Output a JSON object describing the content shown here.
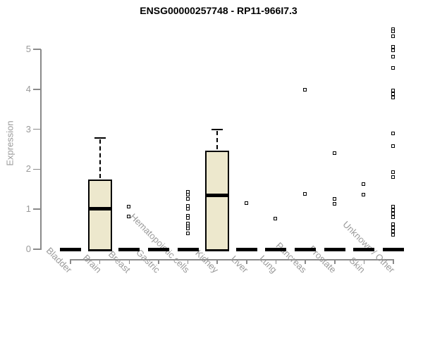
{
  "chart_data": {
    "type": "boxplot",
    "title": "ENSG00000257748 - RP11-966I7.3",
    "ylabel": "Expression",
    "xlabel": "",
    "ylim": [
      0,
      5.6
    ],
    "yticks": [
      0,
      1,
      2,
      3,
      4,
      5
    ],
    "grid": false,
    "box_fill": "#EDE8CD",
    "axis_color": "#8a8a8a",
    "label_color": "#9a9a9a",
    "categories": [
      "Bladder",
      "Brain",
      "Breast",
      "Gastric",
      "Hematopoietic cells",
      "Kidney",
      "Liver",
      "Lung",
      "Pancreas",
      "Prostate",
      "Skin",
      "Unknown / Other"
    ],
    "series": [
      {
        "category": "Bladder",
        "q1": 0,
        "median": 0,
        "q3": 0,
        "whisker_low": 0,
        "whisker_high": 0,
        "outliers": []
      },
      {
        "category": "Brain",
        "q1": 0,
        "median": 1.02,
        "q3": 1.74,
        "whisker_low": 0,
        "whisker_high": 2.78,
        "outliers": []
      },
      {
        "category": "Breast",
        "q1": 0,
        "median": 0,
        "q3": 0,
        "whisker_low": 0,
        "whisker_high": 0,
        "outliers": [
          1.06,
          0.81
        ]
      },
      {
        "category": "Gastric",
        "q1": 0,
        "median": 0,
        "q3": 0,
        "whisker_low": 0,
        "whisker_high": 0,
        "outliers": []
      },
      {
        "category": "Hematopoietic cells",
        "q1": 0,
        "median": 0,
        "q3": 0,
        "whisker_low": 0,
        "whisker_high": 0,
        "outliers": [
          1.42,
          1.36,
          1.25,
          1.08,
          1.0,
          0.82,
          0.77,
          0.64,
          0.57,
          0.51,
          0.39
        ]
      },
      {
        "category": "Kidney",
        "q1": 0,
        "median": 1.34,
        "q3": 2.47,
        "whisker_low": 0,
        "whisker_high": 3.0,
        "outliers": []
      },
      {
        "category": "Liver",
        "q1": 0,
        "median": 0,
        "q3": 0,
        "whisker_low": 0,
        "whisker_high": 0,
        "outliers": [
          1.15
        ]
      },
      {
        "category": "Lung",
        "q1": 0,
        "median": 0,
        "q3": 0,
        "whisker_low": 0,
        "whisker_high": 0,
        "outliers": [
          0.76
        ]
      },
      {
        "category": "Pancreas",
        "q1": 0,
        "median": 0,
        "q3": 0,
        "whisker_low": 0,
        "whisker_high": 0,
        "outliers": [
          3.98,
          1.37
        ]
      },
      {
        "category": "Prostate",
        "q1": 0,
        "median": 0,
        "q3": 0,
        "whisker_low": 0,
        "whisker_high": 0,
        "outliers": [
          2.39,
          1.25,
          1.13
        ]
      },
      {
        "category": "Skin",
        "q1": 0,
        "median": 0,
        "q3": 0,
        "whisker_low": 0,
        "whisker_high": 0,
        "outliers": [
          1.62,
          1.36
        ]
      },
      {
        "category": "Unknown / Other",
        "q1": 0,
        "median": 0,
        "q3": 0,
        "whisker_low": 0,
        "whisker_high": 0,
        "outliers": [
          5.5,
          5.44,
          5.32,
          5.05,
          4.97,
          4.8,
          4.53,
          3.97,
          3.88,
          3.79,
          2.89,
          2.57,
          1.92,
          1.8,
          1.06,
          0.97,
          0.88,
          0.79,
          0.62,
          0.53,
          0.44,
          0.35
        ]
      }
    ]
  }
}
